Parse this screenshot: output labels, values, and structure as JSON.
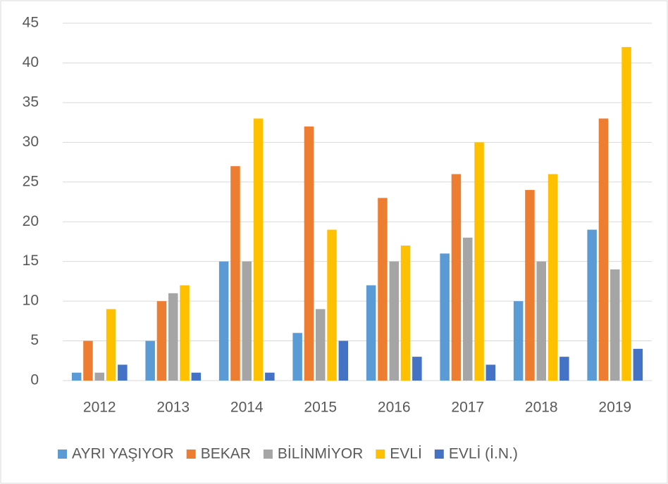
{
  "chart_data": {
    "type": "bar",
    "categories": [
      "2012",
      "2013",
      "2014",
      "2015",
      "2016",
      "2017",
      "2018",
      "2019"
    ],
    "series": [
      {
        "name": "AYRI YAŞIYOR",
        "color": "#5b9bd5",
        "values": [
          1,
          5,
          15,
          6,
          12,
          16,
          10,
          19
        ]
      },
      {
        "name": "BEKAR",
        "color": "#ed7d31",
        "values": [
          5,
          10,
          27,
          32,
          23,
          26,
          24,
          33
        ]
      },
      {
        "name": "BİLİNMİYOR",
        "color": "#a5a5a5",
        "values": [
          1,
          11,
          15,
          9,
          15,
          18,
          15,
          14
        ]
      },
      {
        "name": "EVLİ",
        "color": "#ffc000",
        "values": [
          9,
          12,
          33,
          19,
          17,
          30,
          26,
          42
        ]
      },
      {
        "name": "EVLİ (İ.N.)",
        "color": "#4472c4",
        "values": [
          2,
          1,
          1,
          5,
          3,
          2,
          3,
          4
        ]
      }
    ],
    "ylim": [
      0,
      45
    ],
    "yticks": [
      0,
      5,
      10,
      15,
      20,
      25,
      30,
      35,
      40,
      45
    ],
    "grid": true,
    "legend": "bottom"
  }
}
